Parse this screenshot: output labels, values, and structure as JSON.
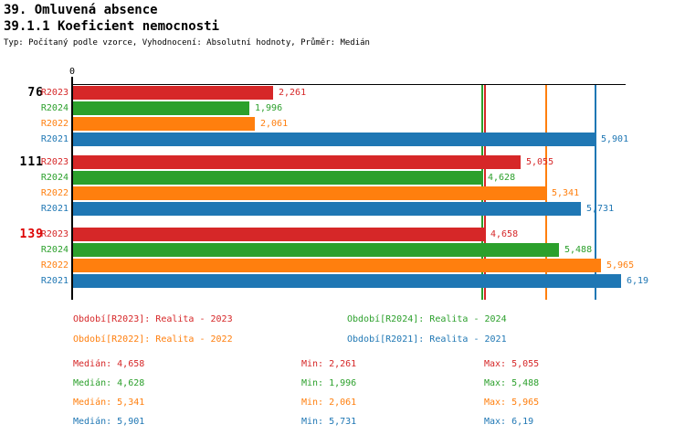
{
  "header": {
    "title": "39. Omluvená absence",
    "subtitle": "39.1.1 Koeficient nemocnosti",
    "meta": "Typ: Počítaný podle vzorce, Vyhodnocení: Absolutní hodnoty, Průměr: Medián"
  },
  "colors": {
    "R2023": "#d62728",
    "R2024": "#2ca02c",
    "R2022": "#ff7f0e",
    "R2021": "#1f77b4",
    "axis": "#000000",
    "group_label": "#000000",
    "group_label_highlight": "#dd0000"
  },
  "chart_data": {
    "type": "bar",
    "orientation": "horizontal",
    "title": "39.1.1 Koeficient nemocnosti",
    "origin_tick_label": "0",
    "xlim": [
      0,
      6.24
    ],
    "grid": false,
    "legend_position": "bottom",
    "series_order": [
      "R2023",
      "R2024",
      "R2022",
      "R2021"
    ],
    "groups": [
      {
        "label": "76",
        "highlight": false,
        "bars": [
          {
            "series": "R2023",
            "value": 2.261,
            "display": "2,261"
          },
          {
            "series": "R2024",
            "value": 1.996,
            "display": "1,996"
          },
          {
            "series": "R2022",
            "value": 2.061,
            "display": "2,061"
          },
          {
            "series": "R2021",
            "value": 5.901,
            "display": "5,901"
          }
        ]
      },
      {
        "label": "111",
        "highlight": false,
        "bars": [
          {
            "series": "R2023",
            "value": 5.055,
            "display": "5,055"
          },
          {
            "series": "R2024",
            "value": 4.628,
            "display": "4,628"
          },
          {
            "series": "R2022",
            "value": 5.341,
            "display": "5,341"
          },
          {
            "series": "R2021",
            "value": 5.731,
            "display": "5,731"
          }
        ]
      },
      {
        "label": "139",
        "highlight": true,
        "bars": [
          {
            "series": "R2023",
            "value": 4.658,
            "display": "4,658"
          },
          {
            "series": "R2024",
            "value": 5.488,
            "display": "5,488"
          },
          {
            "series": "R2022",
            "value": 5.965,
            "display": "5,965"
          },
          {
            "series": "R2021",
            "value": 6.19,
            "display": "6,19"
          }
        ]
      }
    ],
    "median_lines": [
      {
        "series": "R2023",
        "value": 4.658
      },
      {
        "series": "R2024",
        "value": 4.628
      },
      {
        "series": "R2022",
        "value": 5.341
      },
      {
        "series": "R2021",
        "value": 5.901
      }
    ]
  },
  "legend": [
    {
      "series": "R2023",
      "label": "Období[R2023]: Realita - 2023"
    },
    {
      "series": "R2024",
      "label": "Období[R2024]: Realita - 2024"
    },
    {
      "series": "R2022",
      "label": "Období[R2022]: Realita - 2022"
    },
    {
      "series": "R2021",
      "label": "Období[R2021]: Realita - 2021"
    }
  ],
  "stats": [
    {
      "series": "R2023",
      "median": "Medián: 4,658",
      "min": "Min: 2,261",
      "max": "Max: 5,055"
    },
    {
      "series": "R2024",
      "median": "Medián: 4,628",
      "min": "Min: 1,996",
      "max": "Max: 5,488"
    },
    {
      "series": "R2022",
      "median": "Medián: 5,341",
      "min": "Min: 2,061",
      "max": "Max: 5,965"
    },
    {
      "series": "R2021",
      "median": "Medián: 5,901",
      "min": "Min: 5,731",
      "max": "Max: 6,19"
    }
  ]
}
